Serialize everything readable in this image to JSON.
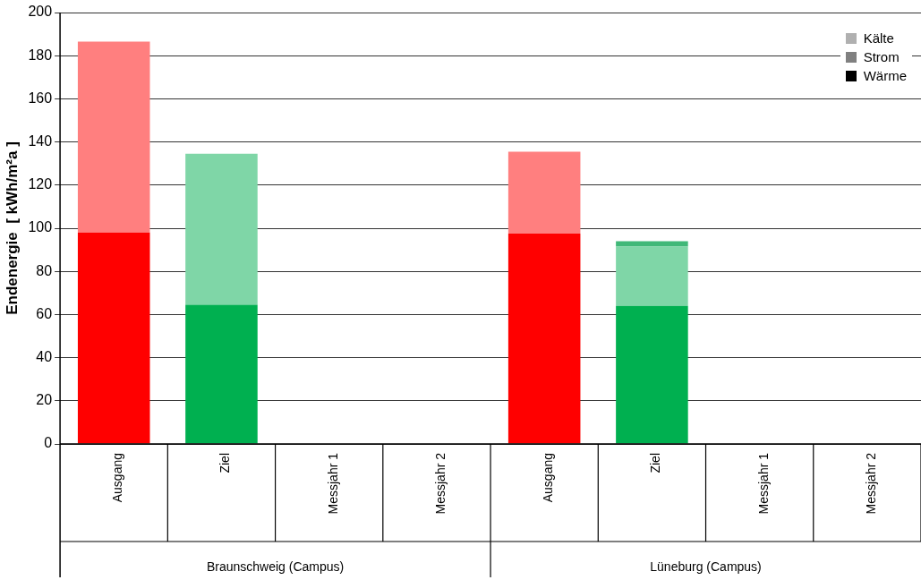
{
  "chart_data": {
    "type": "bar",
    "stacked": true,
    "ylabel": "Endenergie  [ kWh/m²a ]",
    "categories": [
      "Ausgang",
      "Ziel",
      "Messjahr 1",
      "Messjahr 2",
      "Ausgang",
      "Ziel",
      "Messjahr 1",
      "Messjahr 2"
    ],
    "series": [
      {
        "name": "Wärme",
        "color": "#000000",
        "colors": [
          "#ff0000",
          "#00b050",
          "#ff0000",
          "#00b050",
          "#ff0000",
          "#00b050",
          "#ff0000",
          "#00b050"
        ],
        "values": [
          98,
          64.5,
          null,
          null,
          97.5,
          64,
          null,
          null
        ]
      },
      {
        "name": "Strom",
        "color": "#808080",
        "colors": [
          "#ff7f7f",
          "#7fd6a7",
          "#ff7f7f",
          "#7fd6a7",
          "#ff7f7f",
          "#7fd6a7",
          "#ff7f7f",
          "#7fd6a7"
        ],
        "values": [
          88.5,
          70,
          null,
          null,
          36.5,
          27.5,
          null,
          null
        ]
      },
      {
        "name": "Kälte",
        "color": "#b0b0b0",
        "colors": [
          "#ff8080",
          "#40b878",
          "#ff8080",
          "#40b878",
          "#ff8080",
          "#40b878",
          "#ff8080",
          "#40b878"
        ],
        "values": [
          0,
          0,
          null,
          null,
          1.5,
          2.5,
          null,
          null
        ]
      }
    ],
    "ylim": [
      0,
      200
    ],
    "yticks": [
      0,
      20,
      40,
      60,
      80,
      100,
      120,
      140,
      160,
      180,
      200
    ],
    "grid": "y",
    "legend": "top right",
    "annotations": [
      "Braunschweig (Campus)",
      "Lüneburg (Campus)"
    ]
  }
}
